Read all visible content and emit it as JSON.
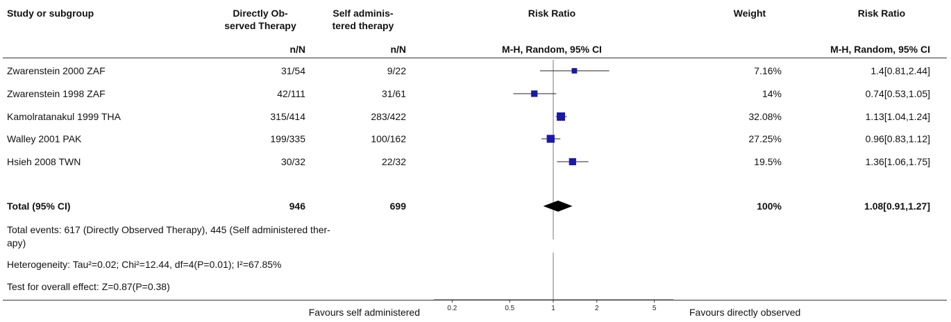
{
  "header": {
    "study": "Study or subgroup",
    "g1": "Directly Observed Therapy",
    "g1_line1": "Directly Ob-",
    "g1_line2": "served Therapy",
    "g2_line1": "Self adminis-",
    "g2_line2": "tered therapy",
    "nN1": "n/N",
    "nN2": "n/N",
    "rr": "Risk Ratio",
    "rr_method": "M-H, Random, 95% CI",
    "weight": "Weight",
    "rr2": "Risk Ratio",
    "rr2_method": "M-H, Random, 95% CI"
  },
  "rows": [
    {
      "study": "Zwarenstein 2000 ZAF",
      "g1": "31/54",
      "g2": "9/22",
      "weight": "7.16%",
      "ci": "1.4[0.81,2.44]"
    },
    {
      "study": "Zwarenstein 1998 ZAF",
      "g1": "42/111",
      "g2": "31/61",
      "weight": "14%",
      "ci": "0.74[0.53,1.05]"
    },
    {
      "study": "Kamolratanakul 1999 THA",
      "g1": "315/414",
      "g2": "283/422",
      "weight": "32.08%",
      "ci": "1.13[1.04,1.24]"
    },
    {
      "study": "Walley 2001 PAK",
      "g1": "199/335",
      "g2": "100/162",
      "weight": "27.25%",
      "ci": "0.96[0.83,1.12]"
    },
    {
      "study": "Hsieh 2008 TWN",
      "g1": "30/32",
      "g2": "22/32",
      "weight": "19.5%",
      "ci": "1.36[1.06,1.75]"
    }
  ],
  "total": {
    "label": "Total (95% CI)",
    "g1": "946",
    "g2": "699",
    "weight": "100%",
    "ci": "1.08[0.91,1.27]"
  },
  "notes": {
    "events": "Total events: 617 (Directly Observed Therapy), 445 (Self administered ther-apy)",
    "events_line1": "Total events: 617 (Directly Observed Therapy), 445 (Self administered ther-",
    "events_line2": "apy)",
    "heterogeneity": "Heterogeneity: Tau²=0.02; Chi²=12.44, df=4(P=0.01); I²=67.85%",
    "overall": "Test for overall effect: Z=0.87(P=0.38)"
  },
  "footer": {
    "left": "Favours self administered",
    "right": "Favours directly observed"
  },
  "chart_data": {
    "type": "forest",
    "scale": "log",
    "xlim": [
      0.1,
      10
    ],
    "ticks": [
      0.2,
      0.5,
      1,
      2,
      5
    ],
    "tick_labels": [
      "0.2",
      "0.5",
      "1",
      "2",
      "5"
    ],
    "null_line": 1,
    "studies": [
      {
        "name": "Zwarenstein 2000 ZAF",
        "rr": 1.4,
        "lo": 0.81,
        "hi": 2.44,
        "weight": 7.16
      },
      {
        "name": "Zwarenstein 1998 ZAF",
        "rr": 0.74,
        "lo": 0.53,
        "hi": 1.05,
        "weight": 14
      },
      {
        "name": "Kamolratanakul 1999 THA",
        "rr": 1.13,
        "lo": 1.04,
        "hi": 1.24,
        "weight": 32.08
      },
      {
        "name": "Walley 2001 PAK",
        "rr": 0.96,
        "lo": 0.83,
        "hi": 1.12,
        "weight": 27.25
      },
      {
        "name": "Hsieh 2008 TWN",
        "rr": 1.36,
        "lo": 1.06,
        "hi": 1.75,
        "weight": 19.5
      }
    ],
    "pooled": {
      "rr": 1.08,
      "lo": 0.91,
      "hi": 1.27
    },
    "colors": {
      "marker": "#1a1aa6",
      "line": "#222222",
      "diamond": "#000000"
    }
  }
}
